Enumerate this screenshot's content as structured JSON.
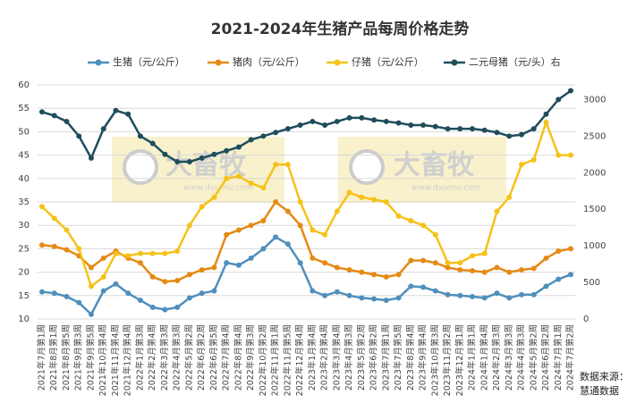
{
  "chart_data": {
    "type": "line",
    "title": "2021-2024年生猪产品每周价格走势",
    "categories": [
      "2021年7月第1周",
      "2021年8月第1周",
      "2021年8月第5周",
      "2021年9月第3周",
      "2021年9月第5周",
      "2021年10月第4周",
      "2021年11月第4周",
      "2021年12月第4周",
      "2022年1月第3周",
      "2022年2月第4周",
      "2022年3月第3周",
      "2022年4月第3周",
      "2022年5月第2周",
      "2022年6月第2周",
      "2022年6月第5周",
      "2022年7月第4周",
      "2022年8月第4周",
      "2022年9月第3周",
      "2022年10月第2周",
      "2022年11月第1周",
      "2022年11月第5周",
      "2022年12月第4周",
      "2023年1月第4周",
      "2023年2月第4周",
      "2023年3月第4周",
      "2023年4月第3周",
      "2023年5月第2周",
      "2023年6月第2周",
      "2023年7月第1周",
      "2023年7月第5周",
      "2023年8月第4周",
      "2023年9月第4周",
      "2023年10月第3周",
      "2023年11月第2周",
      "2023年12月第1周",
      "2024年1月第1周",
      "2024年1月第4周",
      "2024年2月第3周",
      "2024年3月第3周",
      "2024年4月第3周",
      "2024年5月第2周",
      "2024年6月第2周",
      "2024年7月第1周",
      "2024年7月第2周"
    ],
    "series": [
      {
        "name": "生猪（元/公斤）",
        "color": "#4f8fbc",
        "values": [
          15.8,
          15.5,
          14.8,
          13.5,
          11,
          16,
          17.5,
          15.5,
          14,
          12.5,
          12,
          12.5,
          14.5,
          15.5,
          16,
          22,
          21.5,
          23,
          25,
          27.5,
          26,
          22,
          16,
          15,
          15.8,
          15,
          14.5,
          14.3,
          14,
          14.5,
          17,
          16.8,
          16,
          15.2,
          15,
          14.8,
          14.5,
          15.5,
          14.5,
          15.2,
          15.2,
          17,
          18.5,
          19.5
        ]
      },
      {
        "name": "猪肉（元/公斤）",
        "color": "#e58a14",
        "values": [
          25.8,
          25.5,
          24.8,
          23.5,
          21,
          23,
          24.5,
          23,
          22,
          19,
          18,
          18.2,
          19.5,
          20.5,
          21,
          28,
          29,
          30,
          31,
          35,
          33,
          30,
          23,
          22,
          21,
          20.5,
          20,
          19.5,
          19,
          19.5,
          22.5,
          22.5,
          22,
          21,
          20.5,
          20.3,
          20,
          21,
          20,
          20.5,
          20.8,
          23,
          24.5,
          25
        ]
      },
      {
        "name": "仔猪（元/公斤）",
        "color": "#f5c219",
        "values": [
          34,
          31.5,
          29,
          25,
          17,
          19,
          24,
          23.5,
          24,
          24,
          24,
          24.5,
          30,
          34,
          36,
          40,
          40.5,
          39,
          38,
          43,
          43,
          35,
          29,
          28,
          33,
          37,
          36,
          35.5,
          35,
          32,
          31,
          30,
          28,
          22,
          22,
          23.5,
          24,
          33,
          36,
          43,
          44,
          52,
          45,
          45
        ]
      },
      {
        "name": "二元母猪（元/头）右",
        "color": "#1f4d5c",
        "axis": "y2",
        "values": [
          2830,
          2780,
          2700,
          2500,
          2200,
          2600,
          2850,
          2800,
          2500,
          2400,
          2250,
          2150,
          2150,
          2200,
          2250,
          2300,
          2350,
          2450,
          2500,
          2550,
          2600,
          2650,
          2700,
          2650,
          2700,
          2750,
          2750,
          2720,
          2700,
          2680,
          2650,
          2650,
          2630,
          2600,
          2600,
          2600,
          2580,
          2550,
          2500,
          2520,
          2600,
          2800,
          3000,
          3120
        ]
      }
    ],
    "ylim": [
      10,
      60
    ],
    "yticks": [
      10,
      15,
      20,
      25,
      30,
      35,
      40,
      45,
      50,
      55,
      60
    ],
    "y2lim": [
      0,
      3200
    ],
    "y2ticks": [
      0,
      500,
      1000,
      1500,
      2000,
      2500,
      3000
    ],
    "grid": true,
    "legend": "top",
    "watermarks": [
      "大畜牧",
      "www.dxumu.com",
      "大畜牧",
      "www.dxumu.com"
    ],
    "source": [
      "数据来源：",
      "慧通数据"
    ]
  }
}
